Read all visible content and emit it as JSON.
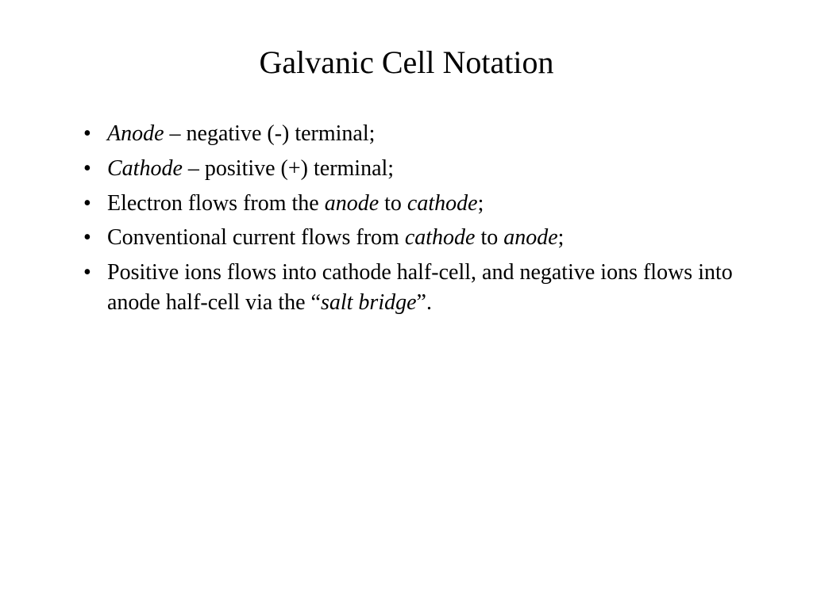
{
  "slide": {
    "title": "Galvanic Cell Notation",
    "title_fontsize": 40,
    "body_fontsize": 28,
    "text_color": "#000000",
    "background_color": "#ffffff",
    "bullets": [
      {
        "segments": [
          {
            "text": "Anode",
            "italic": true
          },
          {
            "text": " – negative (-) terminal;",
            "italic": false
          }
        ]
      },
      {
        "segments": [
          {
            "text": "Cathode",
            "italic": true
          },
          {
            "text": " – positive (+) terminal;",
            "italic": false
          }
        ]
      },
      {
        "segments": [
          {
            "text": "Electron flows from the ",
            "italic": false
          },
          {
            "text": "anode",
            "italic": true
          },
          {
            "text": " to ",
            "italic": false
          },
          {
            "text": "cathode",
            "italic": true
          },
          {
            "text": ";",
            "italic": false
          }
        ]
      },
      {
        "segments": [
          {
            "text": "Conventional current flows from ",
            "italic": false
          },
          {
            "text": "cathode",
            "italic": true
          },
          {
            "text": " to ",
            "italic": false
          },
          {
            "text": "anode",
            "italic": true
          },
          {
            "text": ";",
            "italic": false
          }
        ]
      },
      {
        "segments": [
          {
            "text": "Positive ions flows into cathode half-cell, and negative ions flows into anode half-cell via the “",
            "italic": false
          },
          {
            "text": "salt bridge",
            "italic": true
          },
          {
            "text": "”.",
            "italic": false
          }
        ]
      }
    ]
  }
}
